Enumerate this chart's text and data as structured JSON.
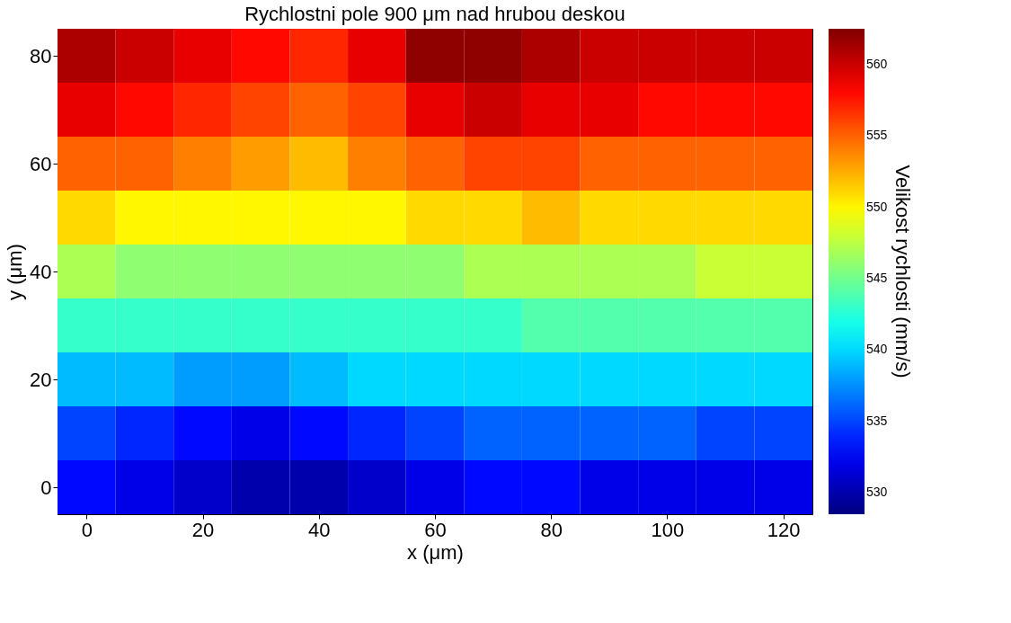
{
  "chart_data": {
    "type": "heatmap",
    "title": "Rychlostni pole 900 μm nad hrubou deskou",
    "xlabel": "x (μm)",
    "ylabel": "y (μm)",
    "clabel": "Velikost rychlosti (mm/s)",
    "categories": [
      "0",
      null,
      "20",
      null,
      "40",
      null,
      "60",
      null,
      "80",
      null,
      "100",
      null,
      "120"
    ],
    "y_categories": [
      "80",
      null,
      "60",
      null,
      "40",
      null,
      "20",
      null,
      "0"
    ],
    "cells": [
      [
        561,
        560,
        559,
        558,
        557,
        559,
        562,
        562,
        561,
        560,
        560,
        560,
        560
      ],
      [
        559,
        558,
        557,
        556,
        555,
        556,
        559,
        560,
        559,
        559,
        558,
        558,
        558
      ],
      [
        555,
        555,
        554,
        553,
        552,
        554,
        555,
        556,
        556,
        555,
        555,
        555,
        555
      ],
      [
        551,
        550,
        550,
        550,
        550,
        550,
        551,
        551,
        552,
        551,
        551,
        551,
        551
      ],
      [
        547,
        546,
        546,
        546,
        546,
        546,
        546,
        547,
        547,
        547,
        547,
        548,
        548
      ],
      [
        543,
        543,
        543,
        543,
        543,
        543,
        543,
        543,
        544,
        544,
        544,
        544,
        544
      ],
      [
        539,
        539,
        538,
        538,
        539,
        540,
        540,
        540,
        540,
        540,
        540,
        540,
        540
      ],
      [
        535,
        534,
        533,
        532,
        533,
        534,
        535,
        536,
        536,
        536,
        536,
        535,
        535
      ],
      [
        533,
        532,
        531,
        530,
        530,
        531,
        532,
        533,
        533,
        532,
        532,
        532,
        532
      ]
    ],
    "clim": [
      528.5,
      562.5
    ],
    "cticks": [
      530,
      535,
      540,
      545,
      550,
      555,
      560
    ],
    "grid": false
  }
}
